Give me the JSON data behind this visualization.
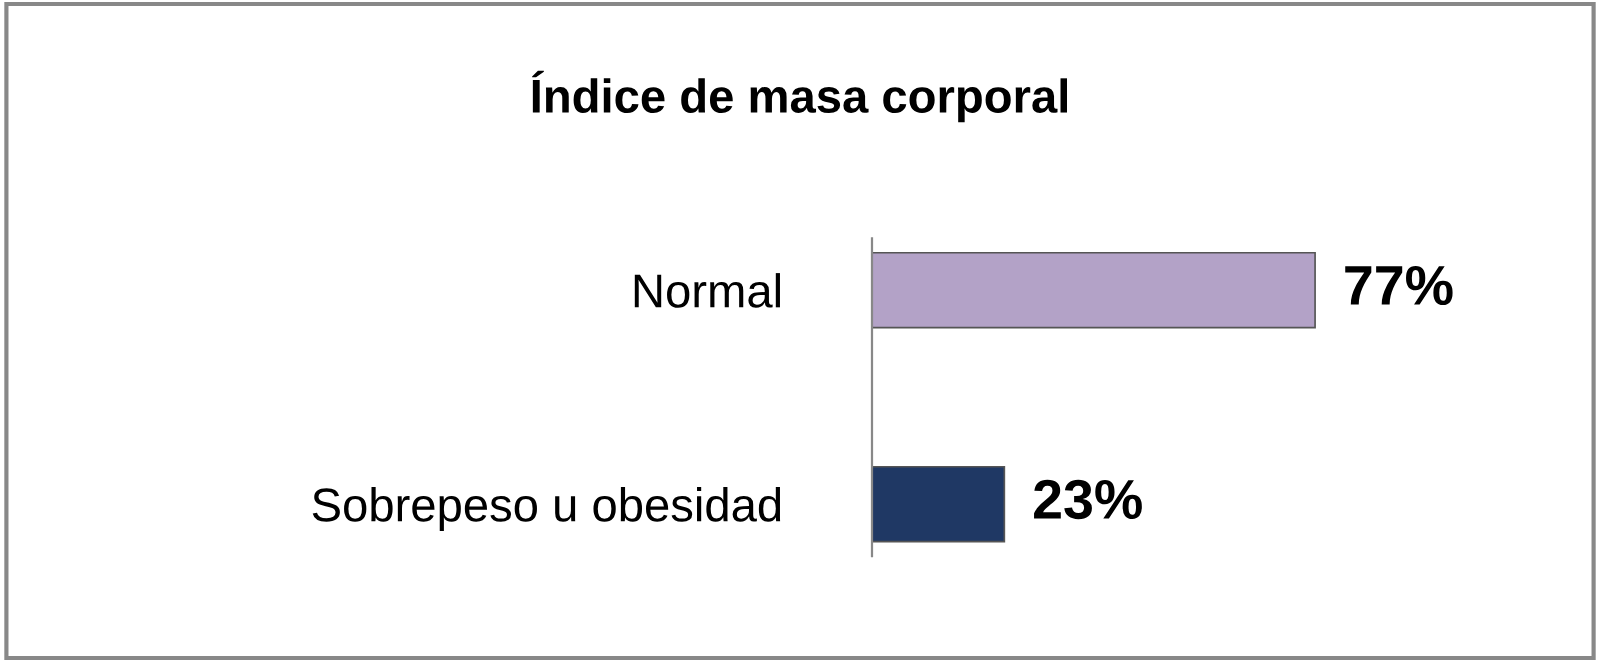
{
  "chart_data": {
    "type": "bar",
    "orientation": "horizontal",
    "title": "Índice de masa corporal",
    "categories": [
      "Normal",
      "Sobrepeso u obesidad"
    ],
    "values": [
      77,
      23
    ],
    "colors": [
      "#b3a2c7",
      "#1f3864"
    ],
    "value_labels": [
      "77%",
      "23%"
    ],
    "grid": false,
    "legend": false
  }
}
